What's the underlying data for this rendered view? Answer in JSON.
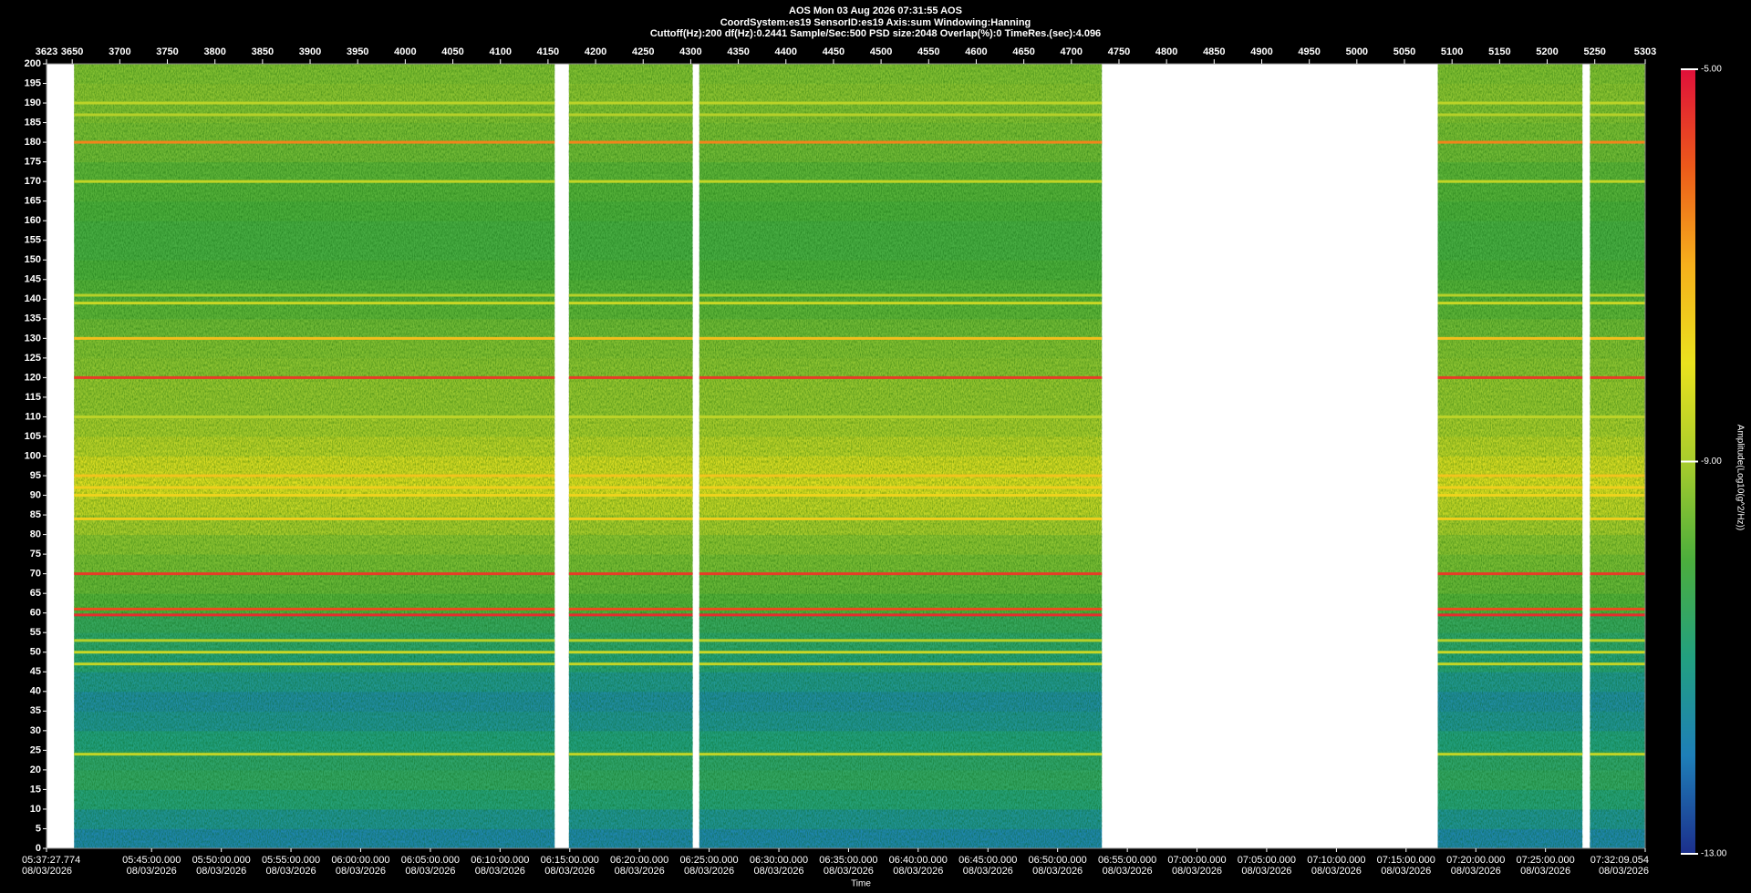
{
  "chart_data": {
    "type": "spectrogram",
    "title": "AOS  Mon 03 Aug 2026 07:31:55  AOS",
    "subtitle": "CoordSystem:es19   SensorID:es19   Axis:sum   Windowing:Hanning",
    "subtitle2": "Cuttoff(Hz):200      df(Hz):0.2441      Sample/Sec:500      PSD size:2048      Overlap(%):0      TimeRes.(sec):4.096",
    "xlabel": "Time",
    "colorbar_label": "Amplitude(Log10(g^2/Hz))",
    "xlim": [
      3623,
      5303
    ],
    "xticks": [
      3623,
      3650,
      3700,
      3750,
      3800,
      3850,
      3900,
      3950,
      4000,
      4050,
      4100,
      4150,
      4200,
      4250,
      4300,
      4350,
      4400,
      4450,
      4500,
      4550,
      4600,
      4650,
      4700,
      4750,
      4800,
      4850,
      4900,
      4950,
      5000,
      5050,
      5100,
      5150,
      5200,
      5250,
      5303
    ],
    "x2ticks": [
      {
        "value": 3623,
        "label": "05:37:27.774",
        "date": "08/03/2026"
      },
      {
        "value": 3733.4,
        "label": "05:45:00.000",
        "date": "08/03/2026"
      },
      {
        "value": 3806.7,
        "label": "05:50:00.000",
        "date": "08/03/2026"
      },
      {
        "value": 3879.9,
        "label": "05:55:00.000",
        "date": "08/03/2026"
      },
      {
        "value": 3953.1,
        "label": "06:00:00.000",
        "date": "08/03/2026"
      },
      {
        "value": 4026.4,
        "label": "06:05:00.000",
        "date": "08/03/2026"
      },
      {
        "value": 4099.6,
        "label": "06:10:00.000",
        "date": "08/03/2026"
      },
      {
        "value": 4172.9,
        "label": "06:15:00.000",
        "date": "08/03/2026"
      },
      {
        "value": 4246.1,
        "label": "06:20:00.000",
        "date": "08/03/2026"
      },
      {
        "value": 4319.3,
        "label": "06:25:00.000",
        "date": "08/03/2026"
      },
      {
        "value": 4392.6,
        "label": "06:30:00.000",
        "date": "08/03/2026"
      },
      {
        "value": 4465.8,
        "label": "06:35:00.000",
        "date": "08/03/2026"
      },
      {
        "value": 4539.0,
        "label": "06:40:00.000",
        "date": "08/03/2026"
      },
      {
        "value": 4612.3,
        "label": "06:45:00.000",
        "date": "08/03/2026"
      },
      {
        "value": 4685.5,
        "label": "06:50:00.000",
        "date": "08/03/2026"
      },
      {
        "value": 4758.8,
        "label": "06:55:00.000",
        "date": "08/03/2026"
      },
      {
        "value": 4832.0,
        "label": "07:00:00.000",
        "date": "08/03/2026"
      },
      {
        "value": 4905.2,
        "label": "07:05:00.000",
        "date": "08/03/2026"
      },
      {
        "value": 4978.5,
        "label": "07:10:00.000",
        "date": "08/03/2026"
      },
      {
        "value": 5051.7,
        "label": "07:15:00.000",
        "date": "08/03/2026"
      },
      {
        "value": 5125.0,
        "label": "07:20:00.000",
        "date": "08/03/2026"
      },
      {
        "value": 5198.2,
        "label": "07:25:00.000",
        "date": "08/03/2026"
      },
      {
        "value": 5303,
        "label": "07:32:09.054",
        "date": "08/03/2026"
      }
    ],
    "ylim": [
      0,
      200
    ],
    "yticks": [
      0,
      5,
      10,
      15,
      20,
      25,
      30,
      35,
      40,
      45,
      50,
      55,
      60,
      65,
      70,
      75,
      80,
      85,
      90,
      95,
      100,
      105,
      110,
      115,
      120,
      125,
      130,
      135,
      140,
      145,
      150,
      155,
      160,
      165,
      170,
      175,
      180,
      185,
      190,
      195,
      200
    ],
    "clim": [
      -13,
      -5
    ],
    "cticks": [
      {
        "value": -5,
        "label": "-5.00"
      },
      {
        "value": -9,
        "label": "-9.00"
      },
      {
        "value": -13,
        "label": "-13.00"
      }
    ],
    "colormap": [
      "#1c2f8c",
      "#1e7fb8",
      "#22a080",
      "#4cae3c",
      "#a8cc2c",
      "#eae21e",
      "#f6b01c",
      "#ec5a1a",
      "#e0103a"
    ],
    "segments": [
      [
        3652,
        4157
      ],
      [
        4172,
        4302
      ],
      [
        4309,
        4732
      ],
      [
        5085,
        5237
      ],
      [
        5245,
        5303
      ]
    ],
    "background": {
      "freq": [
        0,
        5,
        10,
        15,
        20,
        25,
        30,
        35,
        40,
        45,
        50,
        55,
        60,
        65,
        70,
        75,
        80,
        85,
        90,
        95,
        100,
        105,
        110,
        115,
        120,
        125,
        130,
        135,
        140,
        145,
        150,
        155,
        160,
        165,
        170,
        175,
        180,
        185,
        190,
        195
      ],
      "values": [
        -11.8,
        -11.4,
        -10.9,
        -10.6,
        -10.7,
        -11.0,
        -11.4,
        -11.6,
        -11.3,
        -10.9,
        -10.7,
        -10.5,
        -9.9,
        -9.7,
        -9.5,
        -9.3,
        -9.0,
        -8.6,
        -8.2,
        -8.3,
        -8.7,
        -9.0,
        -9.2,
        -9.2,
        -9.3,
        -9.4,
        -9.6,
        -9.8,
        -9.9,
        -10.0,
        -10.1,
        -10.1,
        -10.0,
        -9.9,
        -9.8,
        -9.6,
        -9.5,
        -9.4,
        -9.3,
        -9.4
      ]
    },
    "lines": {
      "freq": [
        180,
        170,
        141,
        139,
        130,
        120,
        110,
        95,
        92,
        90,
        84,
        70,
        61,
        59.5,
        53,
        50,
        47,
        24,
        190,
        187
      ],
      "values": [
        -6.5,
        -8.6,
        -8.8,
        -8.5,
        -7.3,
        -5.6,
        -8.7,
        -7.4,
        -7.6,
        -7.7,
        -7.6,
        -5.6,
        -5.8,
        -5.4,
        -8.8,
        -8.5,
        -8.6,
        -8.6,
        -8.7,
        -8.8
      ]
    }
  }
}
